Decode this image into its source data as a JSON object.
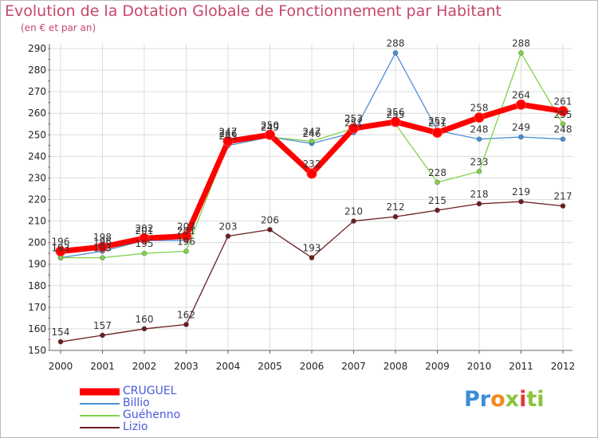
{
  "chart_data": {
    "type": "line",
    "title": "Evolution de la Dotation Globale de Fonctionnement par Habitant",
    "subtitle": "(en € et par an)",
    "xlabel": "",
    "ylabel": "",
    "ylim": [
      150,
      290
    ],
    "y_ticks": [
      150,
      160,
      170,
      180,
      190,
      200,
      210,
      220,
      230,
      240,
      250,
      260,
      270,
      280,
      290
    ],
    "categories": [
      "2000",
      "2001",
      "2002",
      "2003",
      "2004",
      "2005",
      "2006",
      "2007",
      "2008",
      "2009",
      "2010",
      "2011",
      "2012"
    ],
    "grid": true,
    "legend_position": "bottom-left",
    "series": [
      {
        "name": "CRUGUEL",
        "color": "#ff0000",
        "values": [
          196,
          198,
          202,
          203,
          247,
          250,
          232,
          253,
          256,
          251,
          258,
          264,
          261
        ]
      },
      {
        "name": "Billio",
        "color": "#4b8fd3",
        "values": [
          193,
          196,
          201,
          201,
          245,
          249,
          246,
          251,
          288,
          252,
          248,
          249,
          248
        ]
      },
      {
        "name": "Guéhenno",
        "color": "#7ed34a",
        "values": [
          193,
          193,
          195,
          196,
          246,
          249,
          247,
          253,
          255,
          228,
          233,
          288,
          255
        ]
      },
      {
        "name": "Lizio",
        "color": "#6b1e22",
        "values": [
          154,
          157,
          160,
          162,
          203,
          206,
          193,
          210,
          212,
          215,
          218,
          219,
          217
        ]
      }
    ]
  },
  "logo": {
    "p1": "Pr",
    "p2": "o",
    "p3": "x",
    "p4": "i",
    "p5": "ti"
  }
}
